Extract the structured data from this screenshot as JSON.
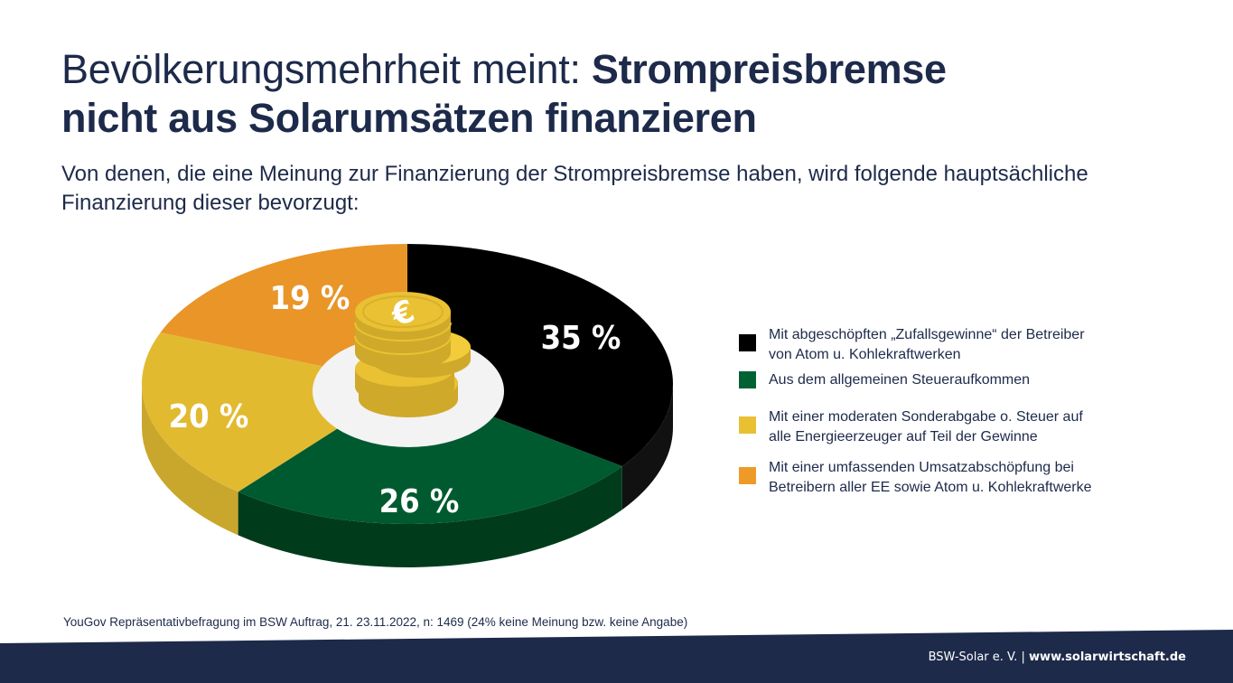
{
  "title": {
    "light": "Bevölkerungsmehrheit meint: ",
    "bold_line1": "Strompreisbremse",
    "bold_line2": "nicht aus Solarumsätzen finanzieren"
  },
  "subtitle": "Von denen, die eine Meinung zur Finanzierung der Strompreisbremse haben, wird folgende hauptsächliche Finanzierung dieser bevorzugt:",
  "chart_data": {
    "type": "pie",
    "style": "3d",
    "title": "Bevölkerungsmehrheit meint: Strompreisbremse nicht aus Solarumsätzen finanzieren",
    "slices": [
      {
        "label": "Mit abgeschöpften „Zufallsgewinne“ der Betreiber von Atom u. Kohlekraftwerken",
        "value": 35,
        "display": "35 %",
        "color": "#000000",
        "side_color": "#111111"
      },
      {
        "label": "Aus dem allgemeinen Steueraufkommen",
        "value": 26,
        "display": "26 %",
        "color": "#005a30",
        "side_color": "#003c1c"
      },
      {
        "label": "Mit einer moderaten Sonderabgabe o. Steuer auf alle Energieerzeuger auf Teil der Gewinne",
        "value": 20,
        "display": "20 %",
        "color": "#e2ba30",
        "side_color": "#c9a72c"
      },
      {
        "label": "Mit einer umfassenden Umsatzabschöpfung bei Betreibern aller EE sowie Atom u. Kohlekraftwerke",
        "value": 19,
        "display": "19 %",
        "color": "#e99528",
        "side_color": "#c97e20"
      }
    ],
    "legend_position": "right",
    "center_icon": "euro-coin-stack-icon"
  },
  "legend": [
    {
      "line1": "Mit abgeschöpften „Zufallsgewinne“ der Betreiber",
      "line2": "von Atom u. Kohlekraftwerken",
      "color": "#000000"
    },
    {
      "line1": "Aus dem allgemeinen Steueraufkommen",
      "line2": "",
      "color": "#006233"
    },
    {
      "line1": "Mit einer moderaten Sonderabgabe o. Steuer auf",
      "line2": "alle Energieerzeuger auf Teil der Gewinne",
      "color": "#e8c032"
    },
    {
      "line1": "Mit einer umfassenden Umsatzabschöpfung bei",
      "line2": "Betreibern aller EE sowie Atom u. Kohlekraftwerke",
      "color": "#ef9a28"
    }
  ],
  "source": "YouGov Repräsentativbefragung im BSW Auftrag, 21. 23.11.2022, n: 1469 (24% keine Meinung bzw. keine Angabe)",
  "footer": {
    "org": "BSW-Solar e. V. | ",
    "url": "www.solarwirtschaft.de",
    "band_color": "#1d2a4a"
  },
  "colors": {
    "text": "#1d2a4a",
    "plate": "#f3f3f3",
    "coin": "#e9c133",
    "coin_dark": "#cfa92a"
  }
}
